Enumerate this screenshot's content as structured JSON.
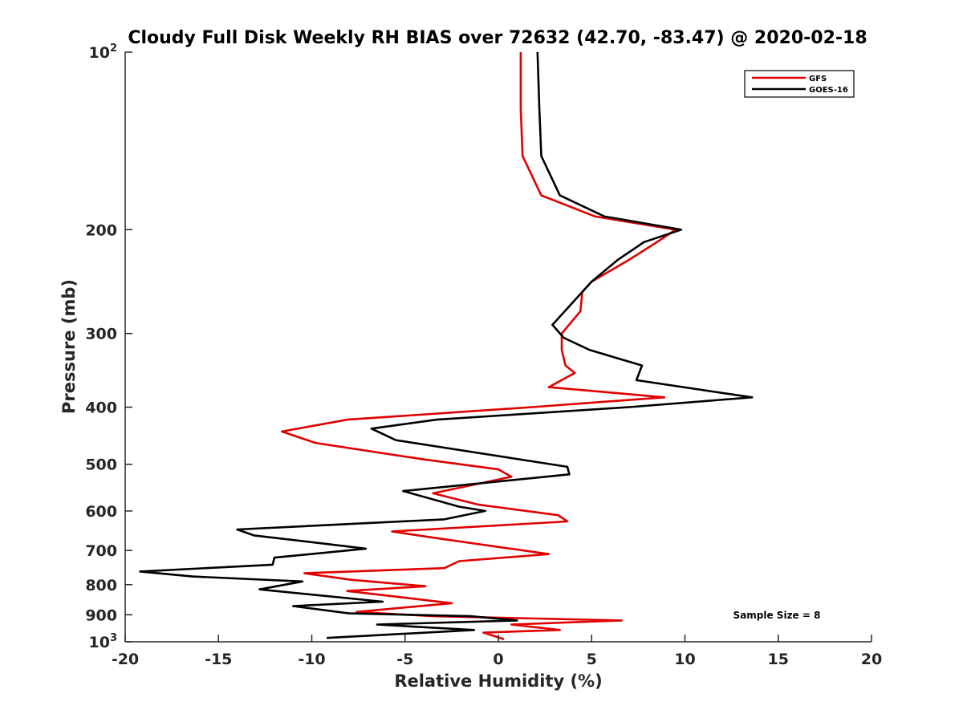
{
  "chart_data": {
    "type": "line",
    "title": "Cloudy Full Disk Weekly RH BIAS over 72632 (42.70, -83.47) @ 2020-02-18",
    "xlabel": "Relative Humidity (%)",
    "ylabel": "Pressure (mb)",
    "xlim": [
      -20,
      20
    ],
    "ylim": [
      100,
      1000
    ],
    "y_scale": "log",
    "y_reversed": true,
    "grid": false,
    "legend_position": "top-right",
    "x_ticks": [
      -20,
      -15,
      -10,
      -5,
      0,
      5,
      10,
      15,
      20
    ],
    "x_tick_labels": [
      "-20",
      "-15",
      "-10",
      "-5",
      "0",
      "5",
      "10",
      "15",
      "20"
    ],
    "y_ticks": [
      100,
      200,
      300,
      400,
      500,
      600,
      700,
      800,
      900,
      1000
    ],
    "y_tick_labels": [
      {
        "base": "10",
        "exp": "2"
      },
      {
        "base": "200",
        "exp": ""
      },
      {
        "base": "300",
        "exp": ""
      },
      {
        "base": "400",
        "exp": ""
      },
      {
        "base": "500",
        "exp": ""
      },
      {
        "base": "600",
        "exp": ""
      },
      {
        "base": "700",
        "exp": ""
      },
      {
        "base": "800",
        "exp": ""
      },
      {
        "base": "900",
        "exp": ""
      },
      {
        "base": "10",
        "exp": "3"
      }
    ],
    "annotation": "Sample Size = 8",
    "series": [
      {
        "name": "GFS",
        "color": "#e00000",
        "points": [
          [
            1.2,
            100
          ],
          [
            1.2,
            125
          ],
          [
            1.3,
            150
          ],
          [
            2.3,
            175
          ],
          [
            5.2,
            190
          ],
          [
            9.5,
            200
          ],
          [
            8.5,
            210
          ],
          [
            7.0,
            225
          ],
          [
            5.0,
            245
          ],
          [
            4.5,
            255
          ],
          [
            4.4,
            275
          ],
          [
            3.4,
            300
          ],
          [
            3.4,
            320
          ],
          [
            3.6,
            340
          ],
          [
            4.1,
            350
          ],
          [
            2.7,
            370
          ],
          [
            8.9,
            385
          ],
          [
            1.8,
            400
          ],
          [
            -8.1,
            420
          ],
          [
            -11.6,
            440
          ],
          [
            -9.8,
            460
          ],
          [
            -4.1,
            490
          ],
          [
            0.0,
            510
          ],
          [
            0.7,
            525
          ],
          [
            -3.5,
            560
          ],
          [
            -1.1,
            585
          ],
          [
            3.2,
            610
          ],
          [
            3.7,
            625
          ],
          [
            -5.7,
            650
          ],
          [
            -3.6,
            665
          ],
          [
            2.7,
            710
          ],
          [
            -2.1,
            730
          ],
          [
            -2.9,
            750
          ],
          [
            -10.4,
            765
          ],
          [
            -7.9,
            785
          ],
          [
            -3.9,
            805
          ],
          [
            -8.1,
            820
          ],
          [
            -2.5,
            860
          ],
          [
            -7.6,
            890
          ],
          [
            -3.5,
            905
          ],
          [
            6.6,
            920
          ],
          [
            0.7,
            935
          ],
          [
            3.3,
            955
          ],
          [
            -0.8,
            965
          ],
          [
            0.3,
            990
          ]
        ]
      },
      {
        "name": "GOES-16",
        "color": "#000000",
        "points": [
          [
            2.1,
            100
          ],
          [
            2.2,
            125
          ],
          [
            2.3,
            150
          ],
          [
            3.3,
            175
          ],
          [
            5.7,
            190
          ],
          [
            9.8,
            200
          ],
          [
            7.8,
            210
          ],
          [
            6.4,
            225
          ],
          [
            5.0,
            245
          ],
          [
            2.9,
            290
          ],
          [
            3.5,
            305
          ],
          [
            4.9,
            320
          ],
          [
            7.7,
            340
          ],
          [
            7.4,
            360
          ],
          [
            13.6,
            385
          ],
          [
            7.0,
            400
          ],
          [
            -3.3,
            420
          ],
          [
            -6.8,
            435
          ],
          [
            -5.5,
            455
          ],
          [
            3.7,
            505
          ],
          [
            3.8,
            520
          ],
          [
            -5.1,
            555
          ],
          [
            -2.1,
            590
          ],
          [
            -0.7,
            600
          ],
          [
            -2.9,
            620
          ],
          [
            -14.0,
            645
          ],
          [
            -13.1,
            660
          ],
          [
            -9.6,
            680
          ],
          [
            -7.1,
            695
          ],
          [
            -12.0,
            720
          ],
          [
            -12.1,
            740
          ],
          [
            -19.2,
            760
          ],
          [
            -16.4,
            775
          ],
          [
            -10.5,
            790
          ],
          [
            -12.8,
            815
          ],
          [
            -6.2,
            855
          ],
          [
            -11.0,
            870
          ],
          [
            -8.0,
            895
          ],
          [
            -1.5,
            905
          ],
          [
            1.0,
            920
          ],
          [
            -6.5,
            935
          ],
          [
            -1.3,
            955
          ],
          [
            -9.2,
            985
          ]
        ]
      }
    ]
  }
}
